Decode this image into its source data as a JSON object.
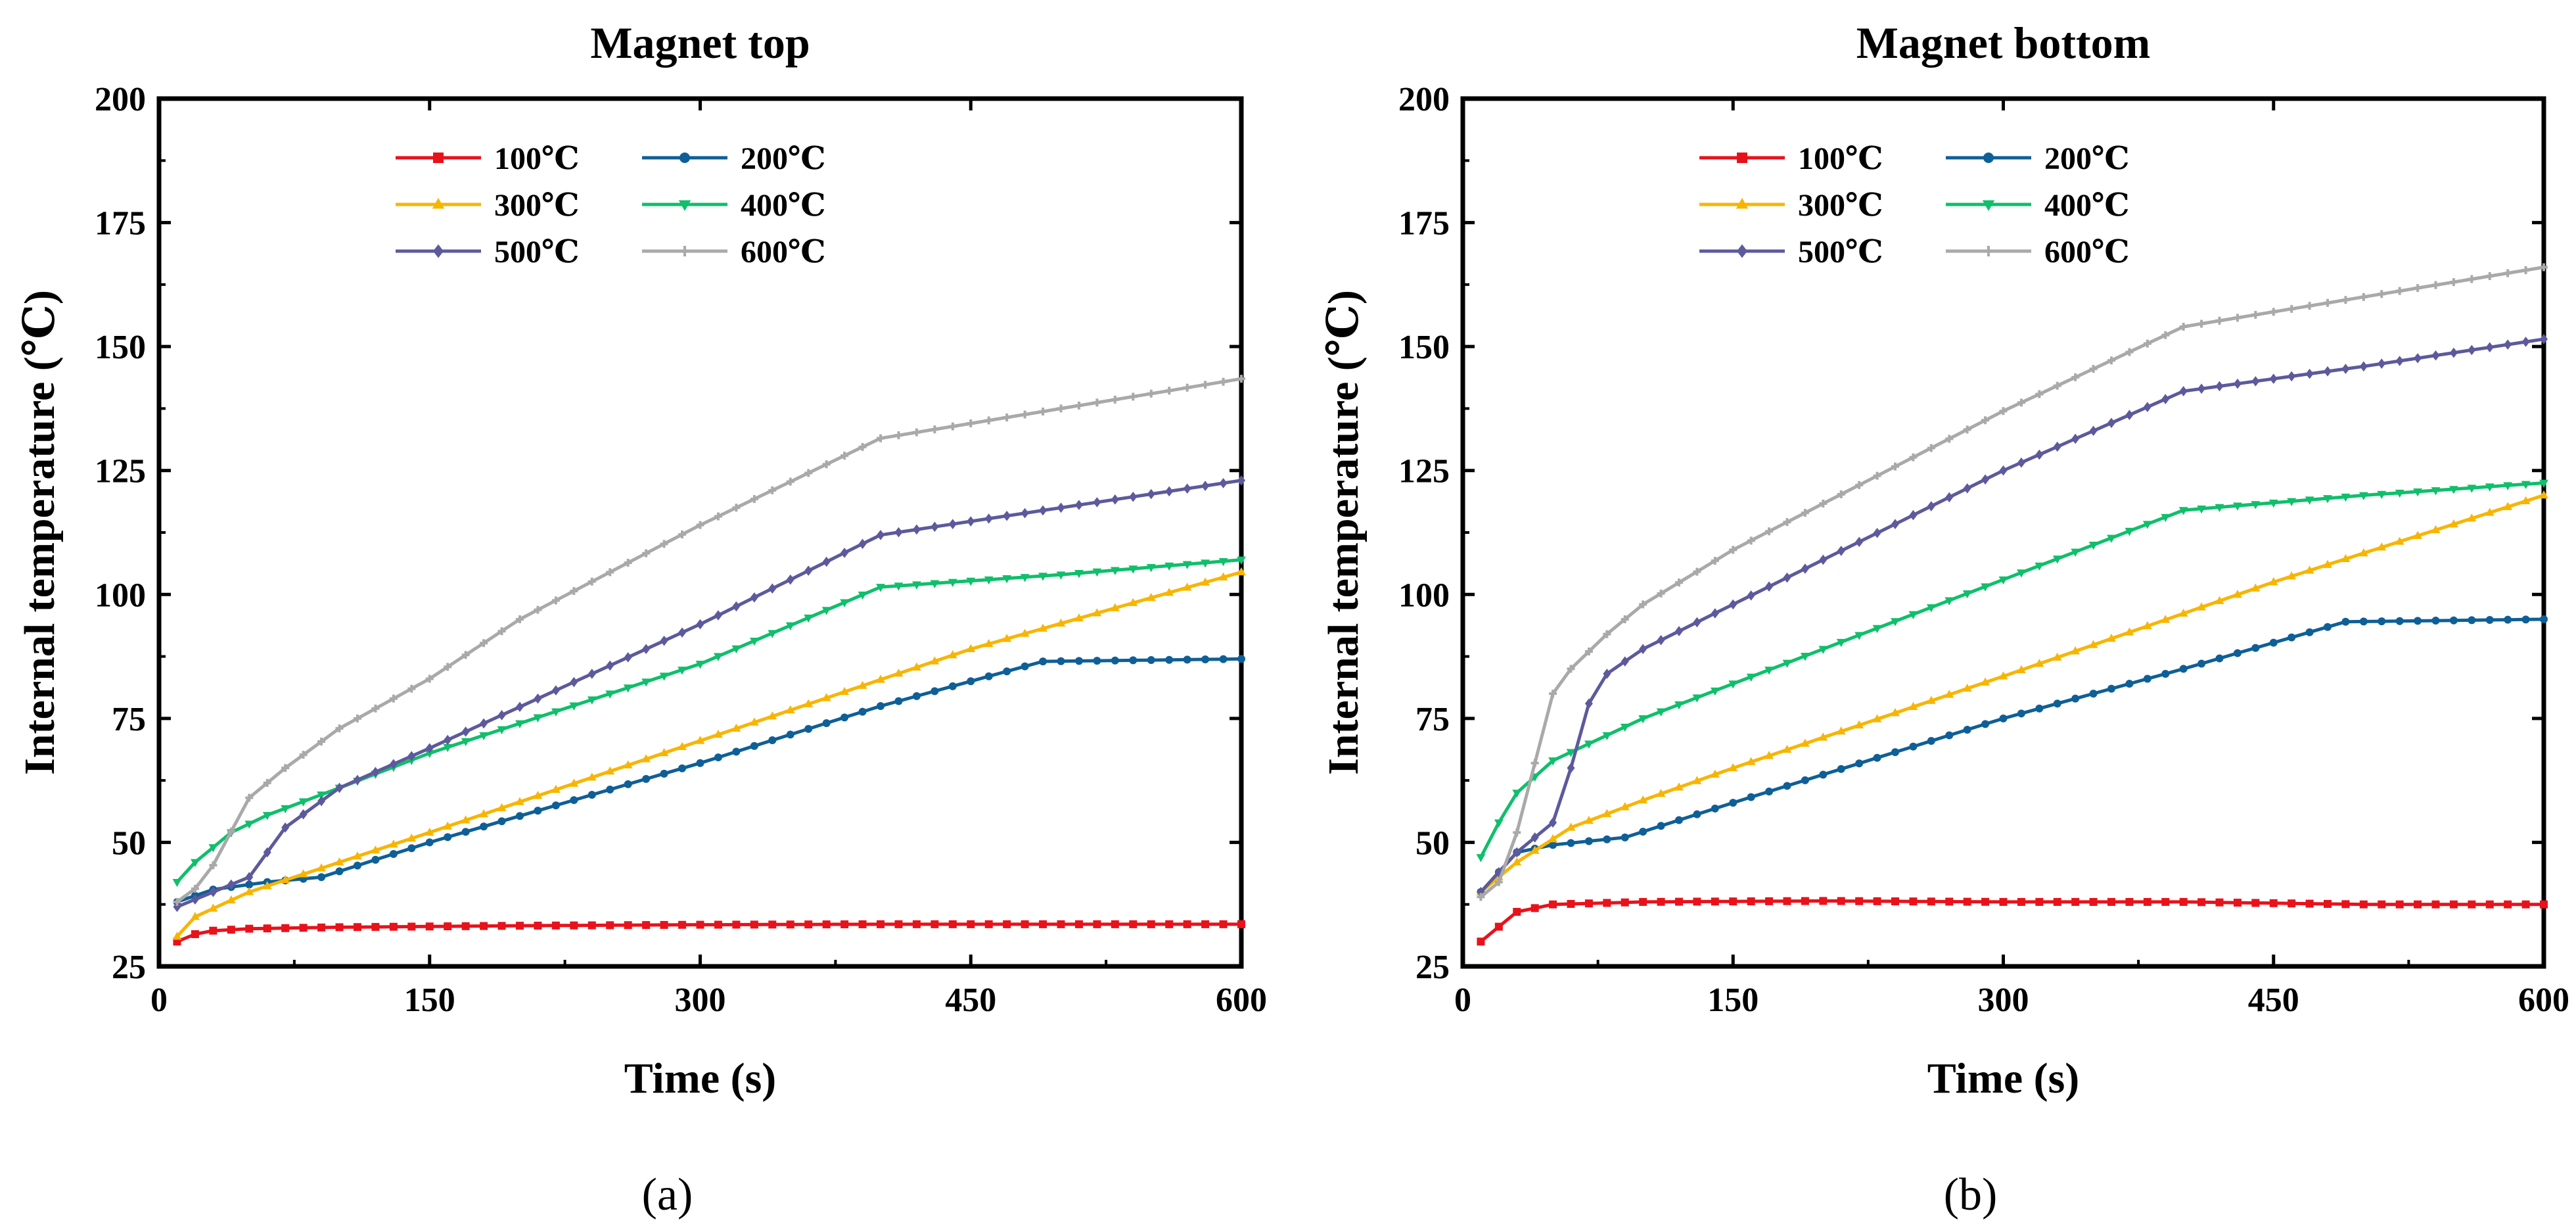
{
  "chart_data": [
    {
      "type": "line",
      "panel_label": "(a)",
      "title": "Magnet top",
      "xlabel": "Time (s)",
      "ylabel": "Internal temperature (℃)",
      "xlim": [
        0,
        600
      ],
      "ylim": [
        25,
        200
      ],
      "xticks": [
        "0",
        "150",
        "300",
        "450",
        "600"
      ],
      "yticks": [
        "25",
        "50",
        "75",
        "100",
        "125",
        "150",
        "175",
        "200"
      ],
      "legend_position": "top-center",
      "series": [
        {
          "name": "100℃",
          "color": "#e8121b",
          "marker": "square",
          "points": [
            [
              10,
              30
            ],
            [
              20,
              31.5
            ],
            [
              30,
              32.2
            ],
            [
              50,
              32.6
            ],
            [
              100,
              32.9
            ],
            [
              200,
              33.2
            ],
            [
              300,
              33.4
            ],
            [
              400,
              33.5
            ],
            [
              500,
              33.5
            ],
            [
              600,
              33.5
            ]
          ]
        },
        {
          "name": "200℃",
          "color": "#0f5f97",
          "marker": "circle",
          "points": [
            [
              10,
              38
            ],
            [
              30,
              40.5
            ],
            [
              60,
              42
            ],
            [
              90,
              43
            ],
            [
              150,
              50
            ],
            [
              300,
              66
            ],
            [
              400,
              77.5
            ],
            [
              490,
              86.5
            ],
            [
              600,
              87
            ]
          ]
        },
        {
          "name": "300℃",
          "color": "#f7b500",
          "marker": "triangle-up",
          "points": [
            [
              10,
              31
            ],
            [
              20,
              35
            ],
            [
              50,
              40
            ],
            [
              100,
              46
            ],
            [
              150,
              52
            ],
            [
              300,
              70.5
            ],
            [
              450,
              89
            ],
            [
              600,
              104.5
            ]
          ]
        },
        {
          "name": "400℃",
          "color": "#0fbf6b",
          "marker": "triangle-down",
          "points": [
            [
              10,
              42
            ],
            [
              20,
              46
            ],
            [
              40,
              52
            ],
            [
              60,
              55.5
            ],
            [
              100,
              61
            ],
            [
              150,
              68
            ],
            [
              300,
              86
            ],
            [
              400,
              101.5
            ],
            [
              500,
              104
            ],
            [
              600,
              107
            ]
          ]
        },
        {
          "name": "500℃",
          "color": "#5c5a9c",
          "marker": "diamond",
          "points": [
            [
              10,
              37
            ],
            [
              30,
              40
            ],
            [
              50,
              43
            ],
            [
              70,
              53
            ],
            [
              100,
              61
            ],
            [
              150,
              69
            ],
            [
              300,
              94
            ],
            [
              400,
              112
            ],
            [
              500,
              117.5
            ],
            [
              600,
              123
            ]
          ]
        },
        {
          "name": "600℃",
          "color": "#a9a9a9",
          "marker": "cross",
          "points": [
            [
              10,
              38
            ],
            [
              25,
              42
            ],
            [
              50,
              59
            ],
            [
              70,
              65
            ],
            [
              100,
              73
            ],
            [
              150,
              83
            ],
            [
              200,
              95
            ],
            [
              300,
              114
            ],
            [
              400,
              131.5
            ],
            [
              500,
              137.5
            ],
            [
              600,
              143.5
            ]
          ]
        }
      ]
    },
    {
      "type": "line",
      "panel_label": "(b)",
      "title": "Magnet bottom",
      "xlabel": "Time (s)",
      "ylabel": "Internal temperature (℃)",
      "xlim": [
        0,
        600
      ],
      "ylim": [
        25,
        200
      ],
      "xticks": [
        "0",
        "150",
        "300",
        "450",
        "600"
      ],
      "yticks": [
        "25",
        "50",
        "75",
        "100",
        "125",
        "150",
        "175",
        "200"
      ],
      "legend_position": "top-center",
      "series": [
        {
          "name": "100℃",
          "color": "#e8121b",
          "marker": "square",
          "points": [
            [
              10,
              30
            ],
            [
              20,
              33
            ],
            [
              30,
              36
            ],
            [
              50,
              37.5
            ],
            [
              100,
              38
            ],
            [
              200,
              38.2
            ],
            [
              300,
              38
            ],
            [
              400,
              38
            ],
            [
              500,
              37.5
            ],
            [
              600,
              37.5
            ]
          ]
        },
        {
          "name": "200℃",
          "color": "#0f5f97",
          "marker": "circle",
          "points": [
            [
              10,
              40
            ],
            [
              30,
              48
            ],
            [
              50,
              49.5
            ],
            [
              90,
              51
            ],
            [
              150,
              58
            ],
            [
              300,
              75
            ],
            [
              400,
              85
            ],
            [
              490,
              94.5
            ],
            [
              600,
              95
            ]
          ]
        },
        {
          "name": "300℃",
          "color": "#f7b500",
          "marker": "triangle-up",
          "points": [
            [
              10,
              40
            ],
            [
              30,
              46
            ],
            [
              60,
              53
            ],
            [
              100,
              58.5
            ],
            [
              150,
              65
            ],
            [
              300,
              83.5
            ],
            [
              450,
              102.5
            ],
            [
              600,
              120
            ]
          ]
        },
        {
          "name": "400℃",
          "color": "#0fbf6b",
          "marker": "triangle-down",
          "points": [
            [
              10,
              47
            ],
            [
              20,
              54
            ],
            [
              30,
              60
            ],
            [
              50,
              66.5
            ],
            [
              100,
              75
            ],
            [
              150,
              82
            ],
            [
              300,
              103
            ],
            [
              400,
              117
            ],
            [
              500,
              120
            ],
            [
              600,
              122.5
            ]
          ]
        },
        {
          "name": "500℃",
          "color": "#5c5a9c",
          "marker": "diamond",
          "points": [
            [
              10,
              40
            ],
            [
              30,
              48
            ],
            [
              50,
              54
            ],
            [
              60,
              65
            ],
            [
              70,
              78
            ],
            [
              80,
              84
            ],
            [
              100,
              89
            ],
            [
              150,
              98
            ],
            [
              300,
              125
            ],
            [
              400,
              141
            ],
            [
              500,
              146
            ],
            [
              600,
              151.5
            ]
          ]
        },
        {
          "name": "600℃",
          "color": "#a9a9a9",
          "marker": "cross",
          "points": [
            [
              10,
              39
            ],
            [
              20,
              42
            ],
            [
              30,
              52
            ],
            [
              40,
              66
            ],
            [
              50,
              80
            ],
            [
              60,
              85
            ],
            [
              80,
              92
            ],
            [
              100,
              98
            ],
            [
              150,
              109
            ],
            [
              300,
              137
            ],
            [
              400,
              154
            ],
            [
              500,
              160
            ],
            [
              600,
              166
            ]
          ]
        }
      ]
    }
  ]
}
